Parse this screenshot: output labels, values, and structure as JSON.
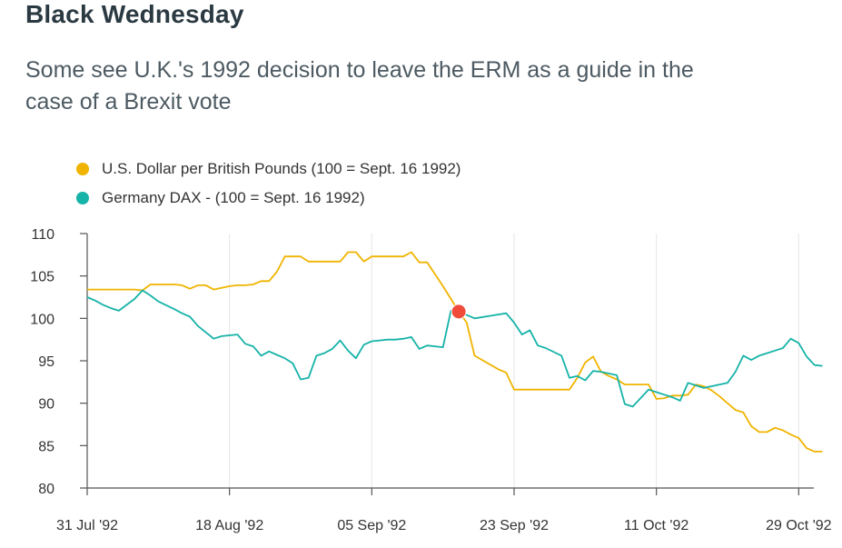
{
  "title": "Black Wednesday",
  "subtitle": "Some see U.K.'s 1992 decision to leave the ERM as a guide in the case of a Brexit vote",
  "chart_data": {
    "type": "line",
    "ylim": [
      80,
      110
    ],
    "y_ticks": [
      80,
      85,
      90,
      95,
      100,
      105,
      110
    ],
    "x_range": [
      "1992-07-31",
      "1992-10-31"
    ],
    "x_ticks": [
      {
        "date": "1992-07-31",
        "label": "31 Jul '92"
      },
      {
        "date": "1992-08-18",
        "label": "18 Aug '92"
      },
      {
        "date": "1992-09-05",
        "label": "05 Sep '92"
      },
      {
        "date": "1992-09-23",
        "label": "23 Sep '92"
      },
      {
        "date": "1992-10-11",
        "label": "11 Oct '92"
      },
      {
        "date": "1992-10-29",
        "label": "29 Oct '92"
      }
    ],
    "grid": "vertical",
    "legend_position": "top-left",
    "highlight": {
      "date": "1992-09-16",
      "value": 100.8,
      "color": "#f04a3a"
    },
    "series": [
      {
        "name": "U.S. Dollar per British Pounds (100 = Sept. 16 1992)",
        "color": "#f0b400",
        "points": [
          [
            "1992-07-31",
            103.4
          ],
          [
            "1992-08-03",
            103.4
          ],
          [
            "1992-08-04",
            103.4
          ],
          [
            "1992-08-05",
            103.4
          ],
          [
            "1992-08-06",
            103.4
          ],
          [
            "1992-08-07",
            103.3
          ],
          [
            "1992-08-08",
            104.0
          ],
          [
            "1992-08-10",
            104.0
          ],
          [
            "1992-08-11",
            104.0
          ],
          [
            "1992-08-12",
            103.9
          ],
          [
            "1992-08-13",
            103.5
          ],
          [
            "1992-08-14",
            103.9
          ],
          [
            "1992-08-15",
            103.9
          ],
          [
            "1992-08-16",
            103.4
          ],
          [
            "1992-08-17",
            103.6
          ],
          [
            "1992-08-18",
            103.8
          ],
          [
            "1992-08-19",
            103.9
          ],
          [
            "1992-08-20",
            103.9
          ],
          [
            "1992-08-21",
            104.0
          ],
          [
            "1992-08-22",
            104.4
          ],
          [
            "1992-08-23",
            104.4
          ],
          [
            "1992-08-24",
            105.5
          ],
          [
            "1992-08-25",
            107.3
          ],
          [
            "1992-08-26",
            107.3
          ],
          [
            "1992-08-27",
            107.3
          ],
          [
            "1992-08-28",
            106.7
          ],
          [
            "1992-08-29",
            106.7
          ],
          [
            "1992-08-31",
            106.7
          ],
          [
            "1992-09-01",
            106.7
          ],
          [
            "1992-09-02",
            107.8
          ],
          [
            "1992-09-03",
            107.8
          ],
          [
            "1992-09-04",
            106.7
          ],
          [
            "1992-09-05",
            107.3
          ],
          [
            "1992-09-07",
            107.3
          ],
          [
            "1992-09-08",
            107.3
          ],
          [
            "1992-09-09",
            107.3
          ],
          [
            "1992-09-10",
            107.8
          ],
          [
            "1992-09-11",
            106.6
          ],
          [
            "1992-09-12",
            106.6
          ],
          [
            "1992-09-14",
            103.8
          ],
          [
            "1992-09-16",
            100.8
          ],
          [
            "1992-09-17",
            99.5
          ],
          [
            "1992-09-18",
            95.6
          ],
          [
            "1992-09-21",
            94.0
          ],
          [
            "1992-09-22",
            93.6
          ],
          [
            "1992-09-23",
            91.6
          ],
          [
            "1992-09-24",
            91.6
          ],
          [
            "1992-09-25",
            91.6
          ],
          [
            "1992-09-28",
            91.6
          ],
          [
            "1992-09-29",
            91.6
          ],
          [
            "1992-09-30",
            91.6
          ],
          [
            "1992-10-01",
            93.0
          ],
          [
            "1992-10-02",
            94.8
          ],
          [
            "1992-10-03",
            95.5
          ],
          [
            "1992-10-04",
            93.7
          ],
          [
            "1992-10-05",
            93.2
          ],
          [
            "1992-10-06",
            92.8
          ],
          [
            "1992-10-07",
            92.2
          ],
          [
            "1992-10-08",
            92.2
          ],
          [
            "1992-10-09",
            92.2
          ],
          [
            "1992-10-10",
            92.2
          ],
          [
            "1992-10-11",
            90.5
          ],
          [
            "1992-10-12",
            90.6
          ],
          [
            "1992-10-13",
            90.9
          ],
          [
            "1992-10-14",
            90.9
          ],
          [
            "1992-10-15",
            91.0
          ],
          [
            "1992-10-16",
            92.2
          ],
          [
            "1992-10-17",
            92.0
          ],
          [
            "1992-10-18",
            91.5
          ],
          [
            "1992-10-19",
            90.8
          ],
          [
            "1992-10-20",
            90.0
          ],
          [
            "1992-10-21",
            89.2
          ],
          [
            "1992-10-22",
            88.9
          ],
          [
            "1992-10-23",
            87.3
          ],
          [
            "1992-10-24",
            86.6
          ],
          [
            "1992-10-25",
            86.6
          ],
          [
            "1992-10-26",
            87.1
          ],
          [
            "1992-10-27",
            86.8
          ],
          [
            "1992-10-28",
            86.3
          ],
          [
            "1992-10-29",
            85.9
          ],
          [
            "1992-10-30",
            84.7
          ],
          [
            "1992-10-31",
            84.3
          ],
          [
            "1992-11-01",
            84.3
          ]
        ]
      },
      {
        "name": "Germany DAX - (100 = Sept. 16 1992)",
        "color": "#16b3a8",
        "points": [
          [
            "1992-07-31",
            102.5
          ],
          [
            "1992-08-01",
            102.1
          ],
          [
            "1992-08-02",
            101.6
          ],
          [
            "1992-08-03",
            101.2
          ],
          [
            "1992-08-04",
            100.9
          ],
          [
            "1992-08-06",
            102.3
          ],
          [
            "1992-08-07",
            103.3
          ],
          [
            "1992-08-08",
            102.7
          ],
          [
            "1992-08-09",
            102.0
          ],
          [
            "1992-08-11",
            101.1
          ],
          [
            "1992-08-12",
            100.6
          ],
          [
            "1992-08-13",
            100.2
          ],
          [
            "1992-08-14",
            99.1
          ],
          [
            "1992-08-16",
            97.6
          ],
          [
            "1992-08-17",
            97.9
          ],
          [
            "1992-08-18",
            98.0
          ],
          [
            "1992-08-19",
            98.1
          ],
          [
            "1992-08-20",
            97.0
          ],
          [
            "1992-08-21",
            96.7
          ],
          [
            "1992-08-22",
            95.6
          ],
          [
            "1992-08-23",
            96.1
          ],
          [
            "1992-08-24",
            95.7
          ],
          [
            "1992-08-25",
            95.3
          ],
          [
            "1992-08-26",
            94.7
          ],
          [
            "1992-08-27",
            92.8
          ],
          [
            "1992-08-28",
            93.0
          ],
          [
            "1992-08-29",
            95.6
          ],
          [
            "1992-08-30",
            95.9
          ],
          [
            "1992-08-31",
            96.4
          ],
          [
            "1992-09-01",
            97.4
          ],
          [
            "1992-09-02",
            96.2
          ],
          [
            "1992-09-03",
            95.3
          ],
          [
            "1992-09-04",
            96.9
          ],
          [
            "1992-09-05",
            97.3
          ],
          [
            "1992-09-06",
            97.4
          ],
          [
            "1992-09-07",
            97.5
          ],
          [
            "1992-09-08",
            97.5
          ],
          [
            "1992-09-09",
            97.6
          ],
          [
            "1992-09-10",
            97.8
          ],
          [
            "1992-09-11",
            96.4
          ],
          [
            "1992-09-12",
            96.8
          ],
          [
            "1992-09-13",
            96.7
          ],
          [
            "1992-09-14",
            96.6
          ],
          [
            "1992-09-15",
            100.9
          ],
          [
            "1992-09-16",
            100.8
          ],
          [
            "1992-09-17",
            100.4
          ],
          [
            "1992-09-18",
            100.0
          ],
          [
            "1992-09-20",
            100.3
          ],
          [
            "1992-09-22",
            100.6
          ],
          [
            "1992-09-23",
            99.5
          ],
          [
            "1992-09-24",
            98.1
          ],
          [
            "1992-09-25",
            98.6
          ],
          [
            "1992-09-26",
            96.8
          ],
          [
            "1992-09-27",
            96.5
          ],
          [
            "1992-09-29",
            95.6
          ],
          [
            "1992-09-30",
            93.0
          ],
          [
            "1992-10-01",
            93.2
          ],
          [
            "1992-10-02",
            92.7
          ],
          [
            "1992-10-03",
            93.8
          ],
          [
            "1992-10-04",
            93.7
          ],
          [
            "1992-10-06",
            93.3
          ],
          [
            "1992-10-07",
            89.9
          ],
          [
            "1992-10-08",
            89.6
          ],
          [
            "1992-10-10",
            91.6
          ],
          [
            "1992-10-11",
            91.3
          ],
          [
            "1992-10-12",
            91.0
          ],
          [
            "1992-10-13",
            90.7
          ],
          [
            "1992-10-14",
            90.3
          ],
          [
            "1992-10-15",
            92.4
          ],
          [
            "1992-10-16",
            92.1
          ],
          [
            "1992-10-17",
            91.8
          ],
          [
            "1992-10-18",
            92.0
          ],
          [
            "1992-10-19",
            92.2
          ],
          [
            "1992-10-20",
            92.4
          ],
          [
            "1992-10-21",
            93.7
          ],
          [
            "1992-10-22",
            95.6
          ],
          [
            "1992-10-23",
            95.1
          ],
          [
            "1992-10-24",
            95.6
          ],
          [
            "1992-10-25",
            95.9
          ],
          [
            "1992-10-26",
            96.2
          ],
          [
            "1992-10-27",
            96.5
          ],
          [
            "1992-10-28",
            97.6
          ],
          [
            "1992-10-29",
            97.1
          ],
          [
            "1992-10-30",
            95.5
          ],
          [
            "1992-10-31",
            94.5
          ],
          [
            "1992-11-01",
            94.4
          ]
        ]
      }
    ]
  }
}
